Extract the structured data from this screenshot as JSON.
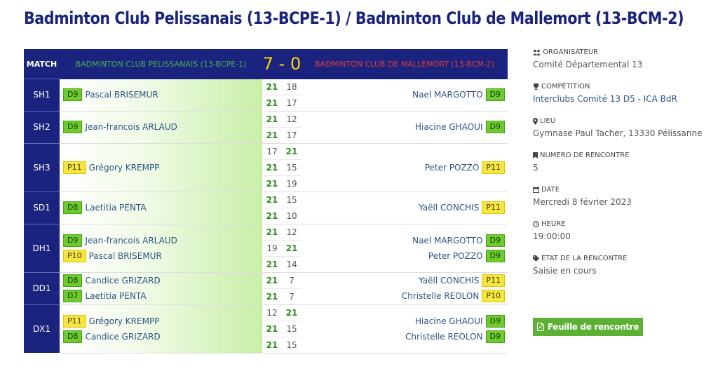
{
  "page_title": "Badminton Club Pelissanais (13-BCPE-1) / Badminton Club de Mallemort (13-BCM-2)",
  "header": {
    "match_label": "MATCH",
    "team1": "BADMINTON CLUB PELISSANAIS (13-BCPE-1)",
    "team2": "BADMINTON CLUB DE MALLEMORT (13-BCM-2)",
    "score1": "7",
    "sep": "-",
    "score2": "0"
  },
  "matches": [
    {
      "code": "SH1",
      "t1": [
        {
          "rank": "D9",
          "color": "g",
          "name": "Pascal BRISEMUR"
        }
      ],
      "t2": [
        {
          "rank": "D9",
          "color": "g",
          "name": "Nael MARGOTTO"
        }
      ],
      "sets": [
        [
          "21",
          "18",
          1
        ],
        [
          "21",
          "17",
          1
        ]
      ]
    },
    {
      "code": "SH2",
      "t1": [
        {
          "rank": "D9",
          "color": "g",
          "name": "Jean-francois ARLAUD"
        }
      ],
      "t2": [
        {
          "rank": "D9",
          "color": "g",
          "name": "Hiacine GHAOUI"
        }
      ],
      "sets": [
        [
          "21",
          "12",
          1
        ],
        [
          "21",
          "17",
          1
        ]
      ]
    },
    {
      "code": "SH3",
      "t1": [
        {
          "rank": "P11",
          "color": "y",
          "name": "Grégory KREMPP"
        }
      ],
      "t2": [
        {
          "rank": "P11",
          "color": "y",
          "name": "Peter POZZO"
        }
      ],
      "sets": [
        [
          "17",
          "21",
          2
        ],
        [
          "21",
          "15",
          1
        ],
        [
          "21",
          "19",
          1
        ]
      ]
    },
    {
      "code": "SD1",
      "t1": [
        {
          "rank": "D8",
          "color": "g",
          "name": "Laetitia PENTA"
        }
      ],
      "t2": [
        {
          "rank": "P11",
          "color": "y",
          "name": "Yaëll CONCHIS"
        }
      ],
      "sets": [
        [
          "21",
          "15",
          1
        ],
        [
          "21",
          "10",
          1
        ]
      ]
    },
    {
      "code": "DH1",
      "t1": [
        {
          "rank": "D9",
          "color": "g",
          "name": "Jean-francois ARLAUD"
        },
        {
          "rank": "P10",
          "color": "y",
          "name": "Pascal BRISEMUR"
        }
      ],
      "t2": [
        {
          "rank": "D9",
          "color": "g",
          "name": "Nael MARGOTTO"
        },
        {
          "rank": "D9",
          "color": "g",
          "name": "Peter POZZO"
        }
      ],
      "sets": [
        [
          "21",
          "12",
          1
        ],
        [
          "19",
          "21",
          2
        ],
        [
          "21",
          "14",
          1
        ]
      ]
    },
    {
      "code": "DD1",
      "t1": [
        {
          "rank": "D8",
          "color": "g",
          "name": "Candice GRIZARD"
        },
        {
          "rank": "D7",
          "color": "g",
          "name": "Laetitia PENTA"
        }
      ],
      "t2": [
        {
          "rank": "P11",
          "color": "y",
          "name": "Yaëll CONCHIS"
        },
        {
          "rank": "P10",
          "color": "y",
          "name": "Christelle REOLON"
        }
      ],
      "sets": [
        [
          "21",
          "7",
          1
        ],
        [
          "21",
          "7",
          1
        ]
      ]
    },
    {
      "code": "DX1",
      "t1": [
        {
          "rank": "P11",
          "color": "y",
          "name": "Grégory KREMPP"
        },
        {
          "rank": "D8",
          "color": "g",
          "name": "Candice GRIZARD"
        }
      ],
      "t2": [
        {
          "rank": "D9",
          "color": "g",
          "name": "Hiacine GHAOUI"
        },
        {
          "rank": "D9",
          "color": "g",
          "name": "Christelle REOLON"
        }
      ],
      "sets": [
        [
          "12",
          "21",
          2
        ],
        [
          "21",
          "15",
          1
        ],
        [
          "21",
          "15",
          1
        ]
      ]
    }
  ],
  "sidebar": {
    "organisateur_label": "ORGANISATEUR",
    "organisateur": "Comité Départemental 13",
    "competition_label": "COMPÉTITION",
    "competition": "Interclubs Comité 13 D5 - ICA BdR",
    "lieu_label": "LIEU",
    "lieu": "Gymnase Paul Tacher, 13330 Pélissanne",
    "numero_label": "NUMERO DE RENCONTRE",
    "numero": "5",
    "date_label": "DATE",
    "date": "Mercredi 8 février 2023",
    "heure_label": "HEURE",
    "heure": "19:00:00",
    "etat_label": "ETAT DE LA RENCONTRE",
    "etat": "Saisie en cours",
    "button": "Feuille de rencontre"
  }
}
